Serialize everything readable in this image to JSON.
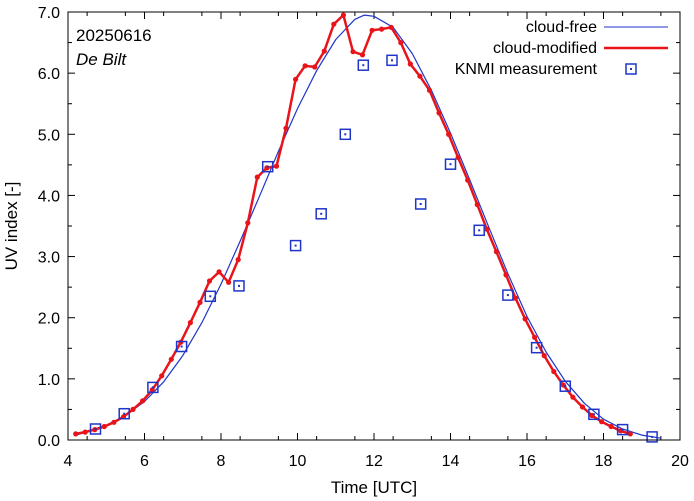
{
  "chart_data": {
    "type": "line",
    "title": "",
    "xlabel": "Time  [UTC]",
    "ylabel": "UV index  [-]",
    "xlim": [
      4,
      20
    ],
    "ylim": [
      0,
      7
    ],
    "x_ticks": [
      4,
      6,
      8,
      10,
      12,
      14,
      16,
      18,
      20
    ],
    "y_ticks": [
      "0.0",
      "1.0",
      "2.0",
      "3.0",
      "4.0",
      "5.0",
      "6.0",
      "7.0"
    ],
    "annotations": {
      "date": "20250616",
      "station": "De Bilt"
    },
    "legend_position": "top-right",
    "colors": {
      "cloud_free": "#1f35c8",
      "cloud_modified": "#e8141a",
      "measurement": "#1f35c8"
    },
    "series": [
      {
        "name": "cloud-free",
        "style": "thin-line",
        "x": [
          4.2,
          4.5,
          5.0,
          5.5,
          6.0,
          6.5,
          7.0,
          7.5,
          8.0,
          8.5,
          9.0,
          9.5,
          10.0,
          10.5,
          11.0,
          11.5,
          11.75,
          12.0,
          12.5,
          13.0,
          13.5,
          14.0,
          14.5,
          15.0,
          15.5,
          16.0,
          16.5,
          17.0,
          17.5,
          18.0,
          18.5,
          19.0,
          19.5
        ],
        "y": [
          0.08,
          0.13,
          0.24,
          0.4,
          0.63,
          0.95,
          1.38,
          1.92,
          2.55,
          3.25,
          3.98,
          4.72,
          5.42,
          6.04,
          6.55,
          6.88,
          6.95,
          6.93,
          6.75,
          6.32,
          5.72,
          5.02,
          4.26,
          3.48,
          2.72,
          2.02,
          1.44,
          0.96,
          0.6,
          0.34,
          0.18,
          0.08,
          0.03
        ]
      },
      {
        "name": "cloud-modified",
        "style": "thick-line-with-markers",
        "x": [
          4.2,
          4.45,
          4.7,
          4.95,
          5.2,
          5.45,
          5.7,
          5.95,
          6.2,
          6.45,
          6.7,
          6.95,
          7.2,
          7.45,
          7.7,
          7.95,
          8.2,
          8.45,
          8.7,
          8.95,
          9.2,
          9.45,
          9.7,
          9.95,
          10.2,
          10.45,
          10.7,
          10.95,
          11.2,
          11.45,
          11.7,
          11.95,
          12.2,
          12.45,
          12.7,
          12.95,
          13.2,
          13.45,
          13.7,
          13.95,
          14.2,
          14.45,
          14.7,
          14.95,
          15.2,
          15.45,
          15.7,
          15.95,
          16.2,
          16.45,
          16.7,
          16.95,
          17.2,
          17.45,
          17.7,
          17.95,
          18.2,
          18.45,
          18.7
        ],
        "y": [
          0.1,
          0.13,
          0.17,
          0.22,
          0.29,
          0.38,
          0.5,
          0.64,
          0.82,
          1.05,
          1.32,
          1.6,
          1.92,
          2.25,
          2.6,
          2.75,
          2.58,
          2.95,
          3.55,
          4.3,
          4.45,
          4.48,
          5.1,
          5.9,
          6.12,
          6.1,
          6.36,
          6.8,
          6.95,
          6.35,
          6.3,
          6.7,
          6.72,
          6.75,
          6.5,
          6.15,
          5.95,
          5.72,
          5.35,
          5.0,
          4.62,
          4.25,
          3.85,
          3.45,
          3.08,
          2.7,
          2.32,
          1.98,
          1.68,
          1.38,
          1.12,
          0.9,
          0.7,
          0.54,
          0.4,
          0.3,
          0.22,
          0.15,
          0.1
        ]
      },
      {
        "name": "KNMI measurement",
        "style": "open-square-markers",
        "x": [
          4.72,
          5.47,
          6.22,
          6.97,
          7.72,
          8.47,
          9.22,
          9.95,
          10.62,
          11.25,
          11.72,
          12.47,
          13.22,
          14.0,
          14.75,
          15.5,
          16.25,
          17.0,
          17.75,
          18.5,
          19.27
        ],
        "y": [
          0.18,
          0.43,
          0.86,
          1.53,
          2.35,
          2.52,
          4.47,
          3.18,
          3.7,
          5.0,
          6.13,
          6.21,
          3.86,
          4.51,
          3.43,
          2.37,
          1.51,
          0.88,
          0.42,
          0.17,
          0.05
        ]
      }
    ]
  }
}
